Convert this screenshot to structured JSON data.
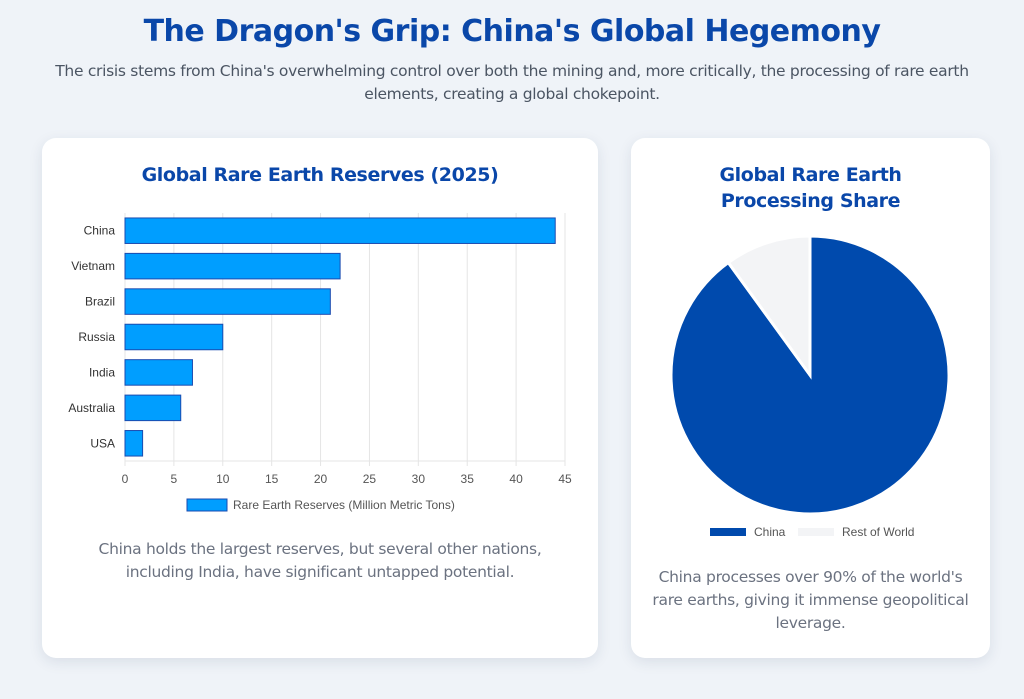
{
  "header": {
    "title": "The Dragon's Grip: China's Global Hegemony",
    "subtitle": "The crisis stems from China's overwhelming control over both the mining and, more critically, the processing of rare earth elements, creating a global chokepoint."
  },
  "reserves_card": {
    "title": "Global Rare Earth Reserves (2025)",
    "description": "China holds the largest reserves, but several other nations, including India, have significant untapped potential."
  },
  "processing_card": {
    "title": "Global Rare Earth Processing Share",
    "description": "China processes over 90% of the world's rare earths, giving it immense geopolitical leverage."
  },
  "colors": {
    "bar_fill": "#009eff",
    "bar_border": "#1a4bb0",
    "china": "#004aad",
    "rest_of_world": "#f3f4f6",
    "title": "#0a47a9",
    "grid": "#e5e5e5"
  },
  "chart_data": [
    {
      "type": "bar",
      "orientation": "horizontal",
      "title": "Global Rare Earth Reserves (2025)",
      "categories": [
        "China",
        "Vietnam",
        "Brazil",
        "Russia",
        "India",
        "Australia",
        "USA"
      ],
      "series": [
        {
          "name": "Rare Earth Reserves (Million Metric Tons)",
          "values": [
            44,
            22,
            21,
            10,
            6.9,
            5.7,
            1.8
          ]
        }
      ],
      "xlabel": "",
      "ylabel": "",
      "xlim": [
        0,
        45
      ],
      "xticks": [
        "0",
        "5",
        "10",
        "15",
        "20",
        "25",
        "30",
        "35",
        "40",
        "45"
      ],
      "grid": true,
      "legend": "bottom"
    },
    {
      "type": "pie",
      "title": "Global Rare Earth Processing Share",
      "labels": [
        "China",
        "Rest of World"
      ],
      "values": [
        90,
        10
      ],
      "legend": "bottom"
    }
  ]
}
